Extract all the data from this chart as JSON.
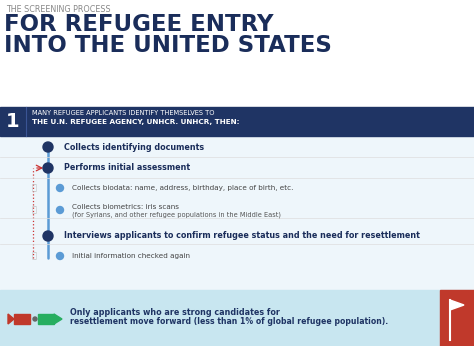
{
  "bg_color": "#ffffff",
  "header_small": "THE SCREENING PROCESS",
  "header_large_line1": "FOR REFUGEE ENTRY",
  "header_large_line2": "INTO THE UNITED STATES",
  "header_large_color": "#1a2d5a",
  "header_small_color": "#888888",
  "step1_bg": "#1f3464",
  "step1_number": "1",
  "step1_text_line1": "MANY REFUGEE APPLICANTS IDENTIFY THEMSELVES TO",
  "step1_text_line2": "THE U.N. REFUGEE AGENCY, UNHCR. UNHCR, THEN:",
  "step1_text_color": "#ffffff",
  "body_bg": "#eef6fb",
  "bottom_bg": "#c8e6f0",
  "timeline_line_color": "#5b9bd5",
  "timeline_dot_main": "#1f3464",
  "timeline_dot_sub": "#5b9bd5",
  "plus_color": "#bbbbbb",
  "dashed_color": "#cc3333",
  "items": [
    {
      "text": "Collects identifying documents",
      "bold": true,
      "sub": false
    },
    {
      "text": "Performs initial assessment",
      "bold": true,
      "sub": false
    },
    {
      "text": "Collects biodata: name, address, birthday, place of birth, etc.",
      "bold": false,
      "sub": true
    },
    {
      "text": "Collects biometrics: iris scans",
      "text2": "(for Syrians, and other refugee populations in the Middle East)",
      "bold": false,
      "sub": true
    },
    {
      "text": "Interviews applicants to confirm refugee status and the need for resettlement",
      "bold": true,
      "sub": false
    },
    {
      "text": "Initial information checked again",
      "bold": false,
      "sub": true
    }
  ],
  "bottom_line1": "Only applicants who are strong candidates for",
  "bottom_line2": "resettlement move forward (less than 1% of global refugee population).",
  "bottom_text_color": "#1f3464",
  "flag_bg": "#c0392b",
  "red_arrow_color": "#c0392b",
  "green_arrow_color": "#27ae60"
}
